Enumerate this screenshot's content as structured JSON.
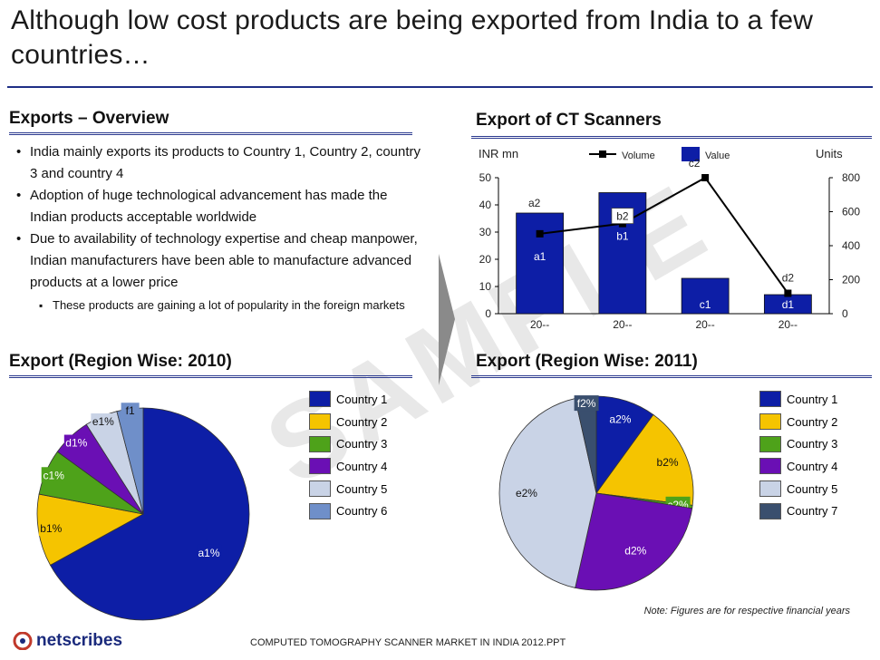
{
  "title": "Although low cost products are being exported from India to a few countries…",
  "overview": {
    "heading": "Exports – Overview",
    "bullets": [
      "India mainly exports its products to Country 1, Country 2, country 3 and country 4",
      "Adoption of huge technological advancement has made the Indian products acceptable worldwide",
      "Due to availability of technology expertise and cheap manpower, Indian manufacturers have been able to manufacture advanced products at a lower price"
    ],
    "sub_bullet": "These products are gaining a lot of popularity in the foreign markets"
  },
  "watermark": "SAMPLE",
  "colors": {
    "rule": "#1f2f86",
    "country1": "#0d1ea6",
    "country2": "#f5c400",
    "country3": "#4ea21a",
    "country4": "#6a0fb4",
    "country5": "#c9d3e6",
    "country6": "#6f8fc9",
    "country7": "#3a4f6e"
  },
  "note": "Note: Figures are for respective financial years",
  "footer": "COMPUTED TOMOGRAPHY SCANNER  MARKET IN INDIA 2012.PPT",
  "logo": "netscribes",
  "chart_data": [
    {
      "type": "bar",
      "title": "Export of CT Scanners",
      "ylabel": "INR mn",
      "y2label": "Units",
      "categories": [
        "20--",
        "20--",
        "20--",
        "20--"
      ],
      "ylim": [
        0,
        50
      ],
      "y_ticks": [
        "0",
        "10",
        "20",
        "30",
        "40",
        "50"
      ],
      "y2lim": [
        0,
        800
      ],
      "y2_ticks": [
        "0",
        "200",
        "400",
        "600",
        "800"
      ],
      "legend": [
        "Volume",
        "Value"
      ],
      "series": [
        {
          "name": "Value",
          "kind": "bar",
          "axis": "left",
          "values": [
            37,
            44.5,
            13,
            7
          ],
          "labels": [
            "a1",
            "b1",
            "c1",
            "d1"
          ]
        },
        {
          "name": "Volume",
          "kind": "line",
          "axis": "right",
          "values": [
            470,
            530,
            800,
            120
          ],
          "labels": [
            "a2",
            "b2",
            "c2",
            "d2"
          ]
        }
      ]
    },
    {
      "type": "pie",
      "title": "Export (Region Wise: 2010)",
      "labels": [
        "Country 1",
        "Country 2",
        "Country 3",
        "Country 4",
        "Country 5",
        "Country 6"
      ],
      "values": [
        67,
        11,
        7,
        6,
        5,
        4
      ],
      "slice_labels": [
        "a1%",
        "b1%",
        "c1%",
        "d1%",
        "e1%",
        "f1"
      ]
    },
    {
      "type": "pie",
      "title": "Export (Region Wise: 2011)",
      "labels": [
        "Country 1",
        "Country 2",
        "Country 3",
        "Country 4",
        "Country 5",
        "Country 7"
      ],
      "values": [
        10,
        17,
        0.5,
        26,
        43,
        3.5
      ],
      "slice_labels": [
        "a2%",
        "b2%",
        "c2%",
        "d2%",
        "e2%",
        "f2%"
      ]
    }
  ]
}
